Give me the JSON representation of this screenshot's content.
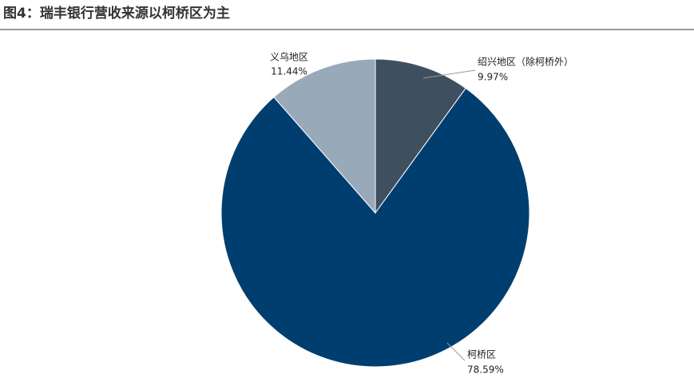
{
  "chart_data": {
    "type": "pie",
    "title": "图4：瑞丰银行营收来源以柯桥区为主",
    "categories": [
      "绍兴地区（除柯桥外）",
      "柯桥区",
      "义乌地区"
    ],
    "values": [
      9.97,
      78.59,
      11.44
    ],
    "value_labels": [
      "9.97%",
      "78.59%",
      "11.44%"
    ],
    "colors": [
      "#3e4f60",
      "#003e6f",
      "#98a9ba"
    ]
  }
}
